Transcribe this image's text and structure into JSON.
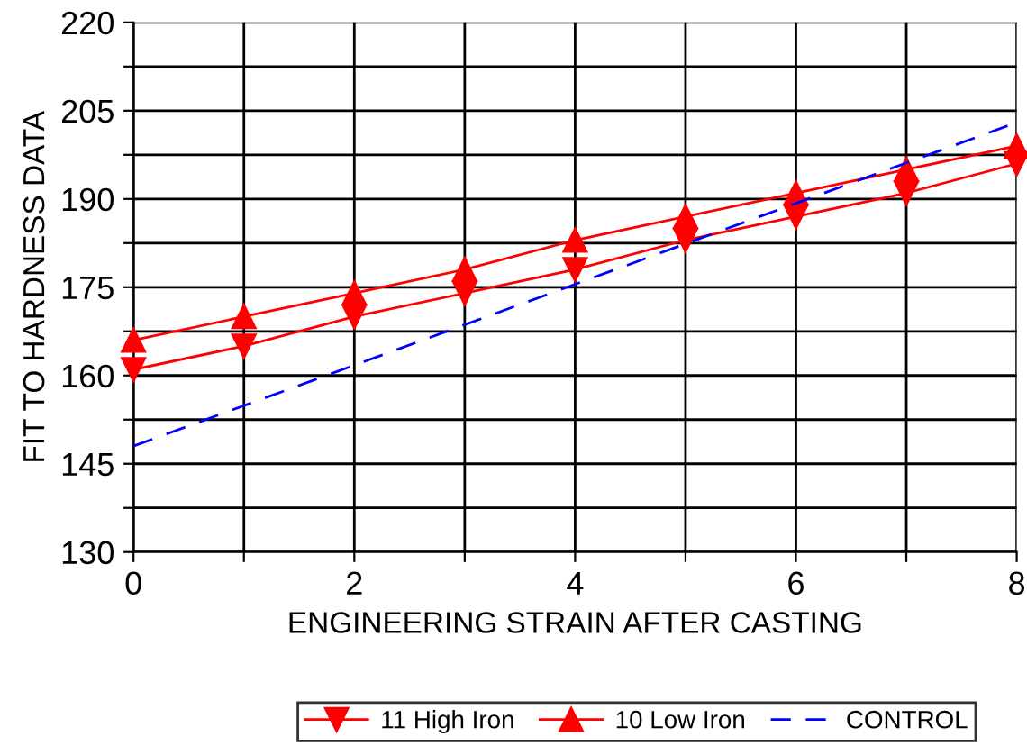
{
  "chart_data": {
    "type": "line",
    "xlabel": "ENGINEERING STRAIN AFTER CASTING",
    "ylabel": "FIT TO HARDNESS DATA",
    "x": [
      0,
      1,
      2,
      3,
      4,
      5,
      6,
      7,
      8
    ],
    "series": [
      {
        "name": "11 High Iron",
        "color": "#ff0000",
        "marker": "triangle_down",
        "values": [
          161,
          165,
          170,
          174,
          178,
          183,
          187,
          191,
          196
        ]
      },
      {
        "name": "10 Low Iron",
        "color": "#ff0000",
        "marker": "triangle",
        "values": [
          166,
          170,
          174,
          178,
          183,
          187,
          191,
          195,
          199
        ]
      },
      {
        "name": "CONTROL",
        "color": "#0000ff",
        "marker": "none",
        "line_style": "dashed",
        "x": [
          0,
          8
        ],
        "values": [
          148,
          203
        ]
      }
    ],
    "xlim": [
      0,
      8
    ],
    "xticks": [
      0,
      {
        "value": 1,
        "label": null
      },
      2,
      {
        "value": 3,
        "label": null
      },
      4,
      {
        "value": 5,
        "label": null
      },
      6,
      {
        "value": 7,
        "label": null
      },
      8
    ],
    "ylim": [
      130,
      220
    ],
    "yticks": [
      130,
      {
        "value": 137.5,
        "label": null
      },
      145,
      {
        "value": 152.5,
        "label": null
      },
      160,
      {
        "value": 167.5,
        "label": null
      },
      175,
      {
        "value": 182.5,
        "label": null
      },
      190,
      {
        "value": 197.5,
        "label": null
      },
      205,
      {
        "value": 212.5,
        "label": null
      },
      220
    ],
    "grid": true,
    "legend": "bottom"
  }
}
